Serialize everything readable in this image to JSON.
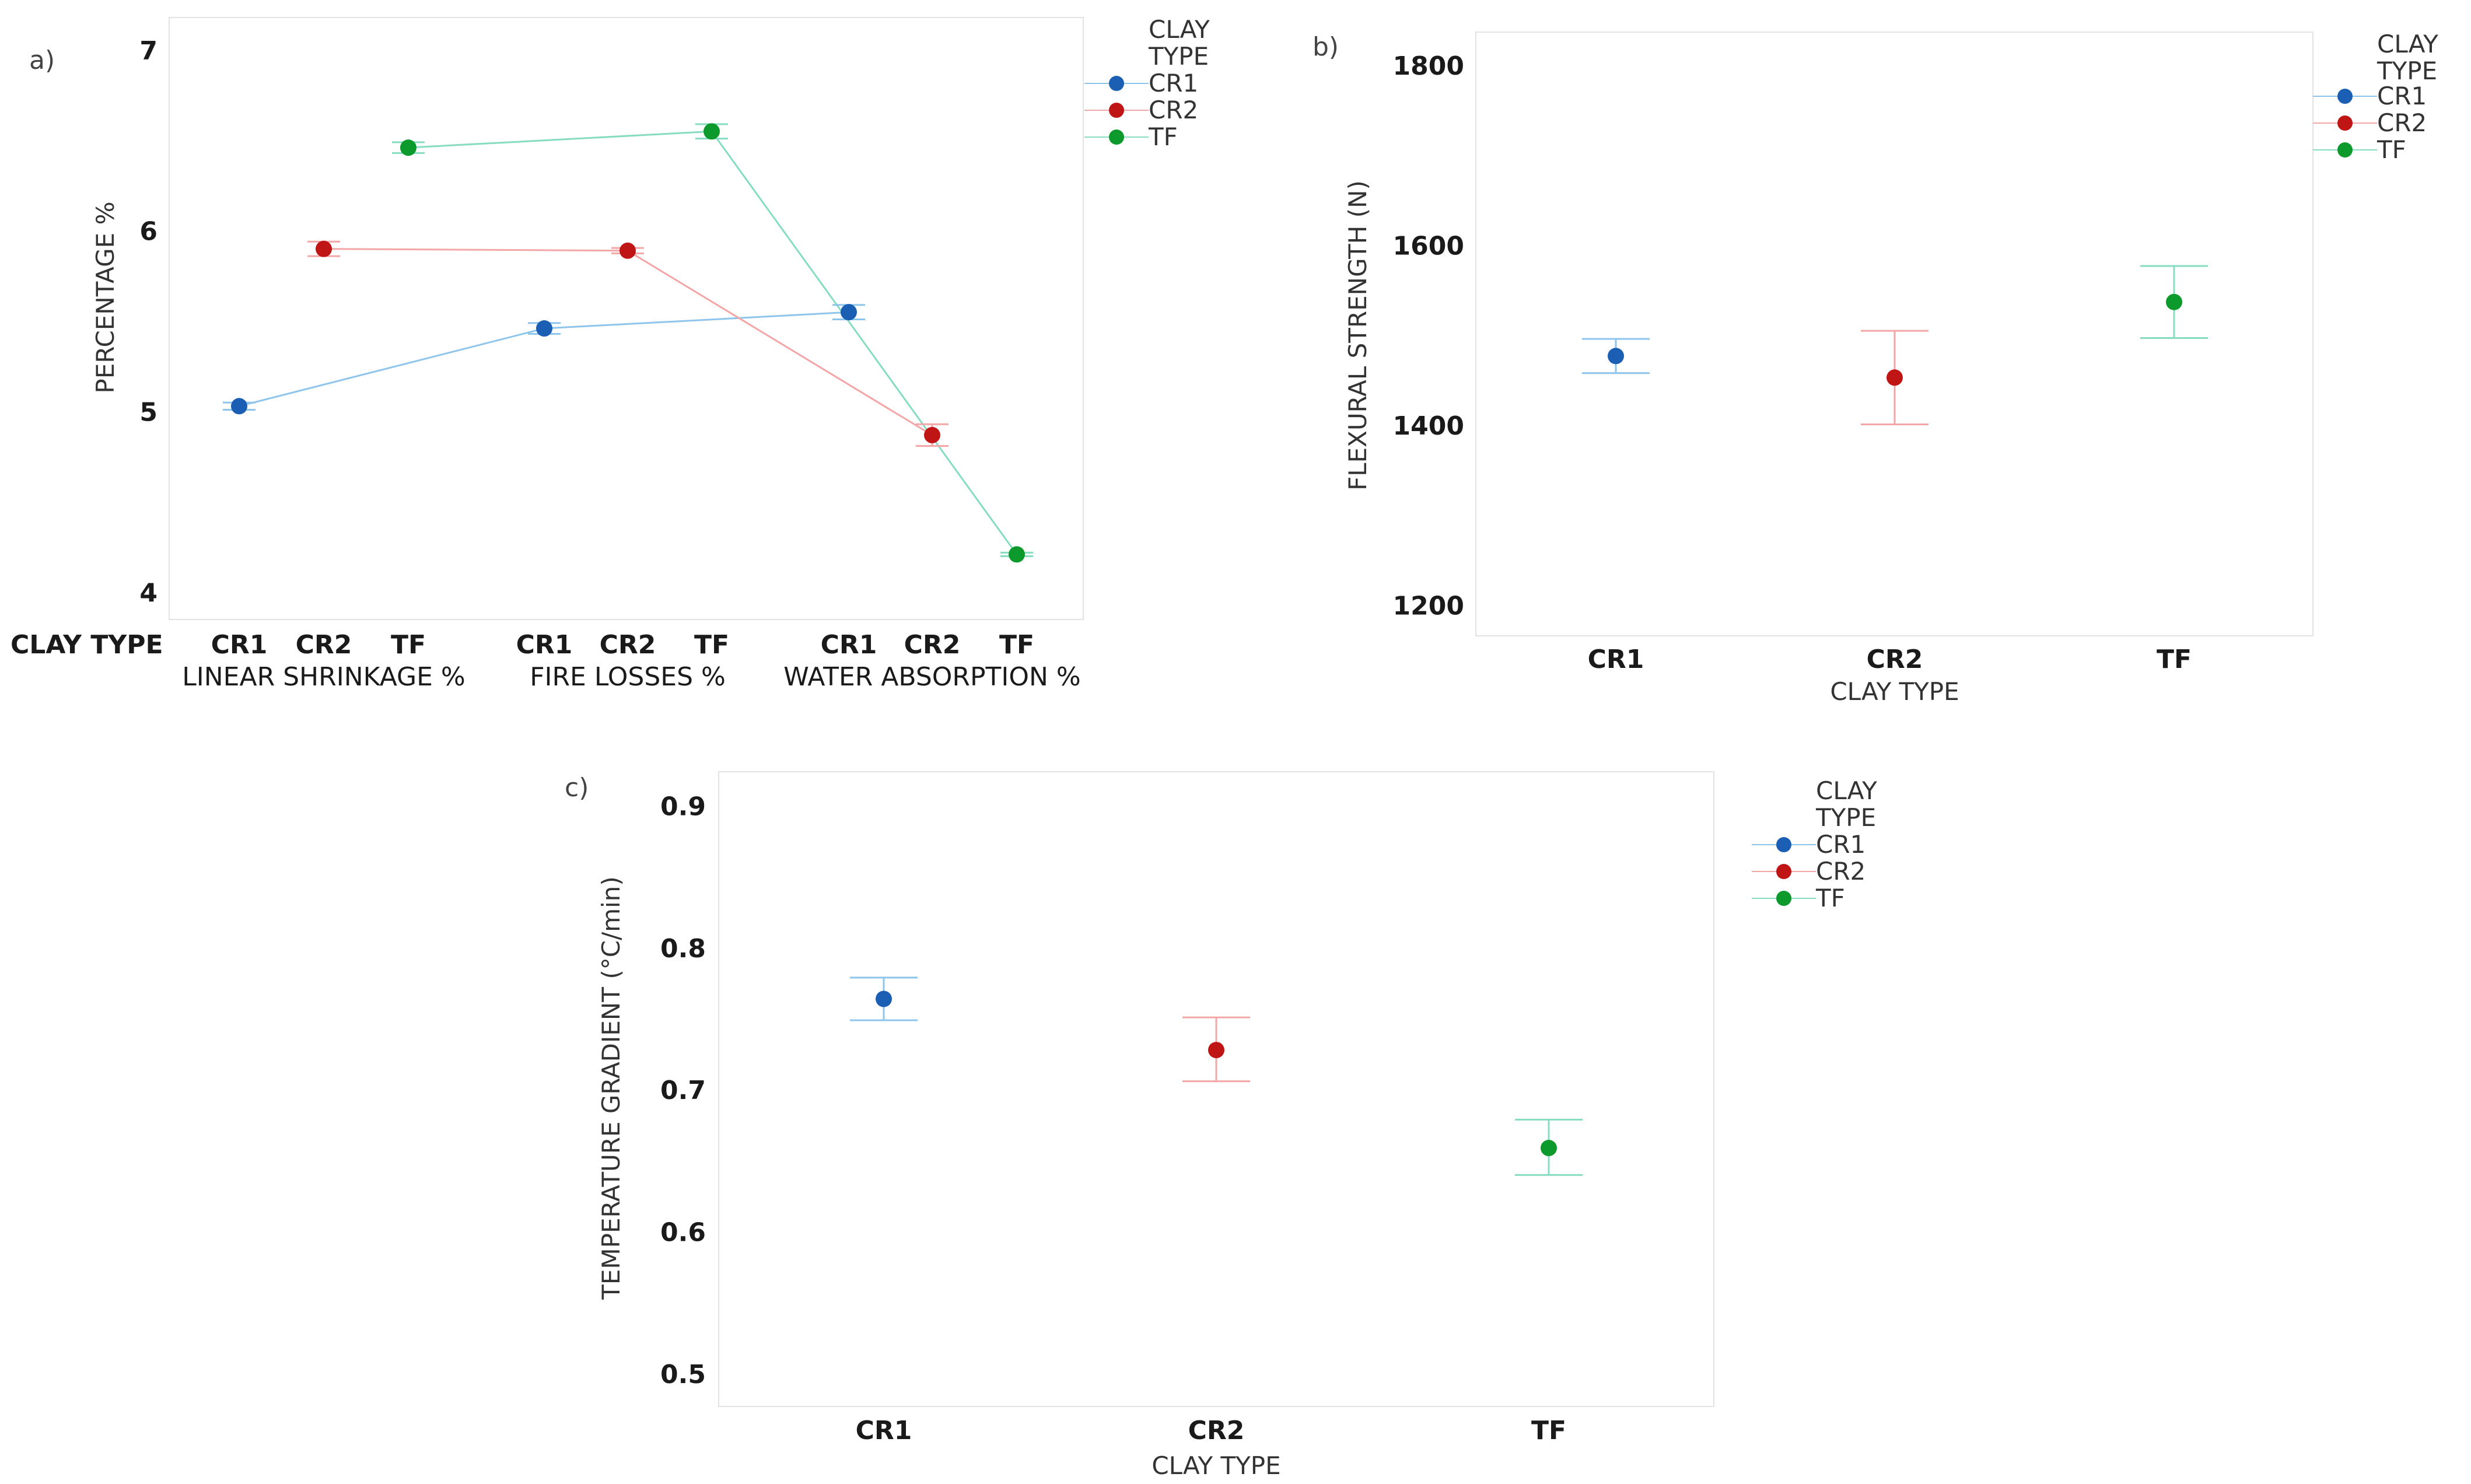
{
  "colors": {
    "CR1": "#1a5fb4",
    "CR2": "#c01515",
    "TF": "#0b9a2b",
    "CR1_light": "#8ec5ec",
    "CR2_light": "#f4a6a6",
    "TF_light": "#86dcc0"
  },
  "chart_data": [
    {
      "panel": "a)",
      "type": "line",
      "ylabel": "PERCENTAGE %",
      "x_row_label": "CLAY TYPE",
      "ylim": [
        3.85,
        7.18
      ],
      "yticks": [
        "4",
        "5",
        "6",
        "7"
      ],
      "groups": [
        "LINEAR SHRINKAGE %",
        "FIRE LOSSES %",
        "WATER ABSORPTION %"
      ],
      "categories": [
        "CR1",
        "CR2",
        "TF"
      ],
      "legend_title": [
        "CLAY",
        "TYPE"
      ],
      "series": [
        {
          "name": "CR1",
          "values": [
            5.03,
            5.46,
            5.55
          ],
          "err": [
            0.02,
            0.03,
            0.04
          ]
        },
        {
          "name": "CR2",
          "values": [
            5.9,
            5.89,
            4.87
          ],
          "err": [
            0.04,
            0.015,
            0.06
          ]
        },
        {
          "name": "TF",
          "values": [
            6.46,
            6.55,
            4.21
          ],
          "err": [
            0.03,
            0.04,
            0.01
          ]
        }
      ]
    },
    {
      "panel": "b)",
      "type": "scatter",
      "ylabel": "FLEXURAL STRENGTH (N)",
      "xlabel": "CLAY TYPE",
      "ylim": [
        1166,
        1837
      ],
      "yticks": [
        "1200",
        "1400",
        "1600",
        "1800"
      ],
      "categories": [
        "CR1",
        "CR2",
        "TF"
      ],
      "legend_title": [
        "CLAY",
        "TYPE"
      ],
      "values": [
        1477,
        1453,
        1537
      ],
      "lower": [
        1458,
        1401,
        1497
      ],
      "upper": [
        1496,
        1505,
        1577
      ]
    },
    {
      "panel": "c)",
      "type": "scatter",
      "ylabel": "TEMPERATURE GRADIENT (°C/min)",
      "xlabel": "CLAY TYPE",
      "ylim": [
        0.477,
        0.924
      ],
      "yticks": [
        "0.5",
        "0.6",
        "0.7",
        "0.8",
        "0.9"
      ],
      "categories": [
        "CR1",
        "CR2",
        "TF"
      ],
      "legend_title": [
        "CLAY",
        "TYPE"
      ],
      "values": [
        0.764,
        0.728,
        0.659
      ],
      "lower": [
        0.749,
        0.706,
        0.64
      ],
      "upper": [
        0.779,
        0.751,
        0.679
      ]
    }
  ]
}
